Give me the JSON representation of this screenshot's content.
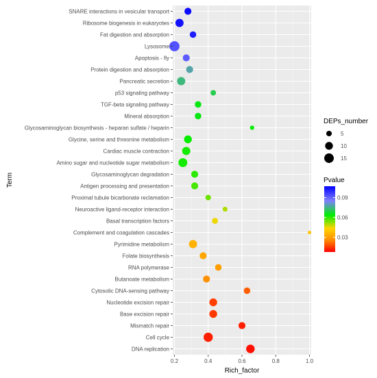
{
  "chart_data": {
    "type": "scatter",
    "title": "",
    "xlabel": "Rich_factor",
    "ylabel": "Term",
    "xlim": [
      0.19,
      1.01
    ],
    "xticks": [
      0.2,
      0.4,
      0.6,
      0.8,
      1.0
    ],
    "xtick_labels": [
      "0.2",
      "0.4",
      "0.6",
      "0.8",
      "1.0"
    ],
    "grid": true,
    "legend_position": "right",
    "points": [
      {
        "term": "SNARE interactions in vesicular transport",
        "rich_factor": 0.28,
        "pvalue": 0.105,
        "deps": 8
      },
      {
        "term": "Ribosome biogenesis in eukaryotes",
        "rich_factor": 0.23,
        "pvalue": 0.104,
        "deps": 11
      },
      {
        "term": "Fat digestion and absorption",
        "rich_factor": 0.31,
        "pvalue": 0.102,
        "deps": 7
      },
      {
        "term": "Lysosome",
        "rich_factor": 0.2,
        "pvalue": 0.093,
        "deps": 17
      },
      {
        "term": "Apoptosis - fly",
        "rich_factor": 0.27,
        "pvalue": 0.091,
        "deps": 8
      },
      {
        "term": "Protein digestion and absorption",
        "rich_factor": 0.29,
        "pvalue": 0.078,
        "deps": 8
      },
      {
        "term": "Pancreatic secretion",
        "rich_factor": 0.24,
        "pvalue": 0.074,
        "deps": 11
      },
      {
        "term": "p53 signaling pathway",
        "rich_factor": 0.43,
        "pvalue": 0.07,
        "deps": 5
      },
      {
        "term": "TGF-beta signaling pathway",
        "rich_factor": 0.34,
        "pvalue": 0.065,
        "deps": 7
      },
      {
        "term": "Mineral absorption",
        "rich_factor": 0.34,
        "pvalue": 0.065,
        "deps": 7
      },
      {
        "term": "Glycosaminoglycan biosynthesis - heparan sulfate / heparin",
        "rich_factor": 0.66,
        "pvalue": 0.063,
        "deps": 3
      },
      {
        "term": "Glycine, serine and threonine metabolism",
        "rich_factor": 0.28,
        "pvalue": 0.063,
        "deps": 10
      },
      {
        "term": "Cardiac muscle contraction",
        "rich_factor": 0.27,
        "pvalue": 0.062,
        "deps": 11
      },
      {
        "term": "Amino sugar and nucleotide sugar metabolism",
        "rich_factor": 0.25,
        "pvalue": 0.062,
        "deps": 13
      },
      {
        "term": "Glycosaminoglycan degradation",
        "rich_factor": 0.32,
        "pvalue": 0.06,
        "deps": 8
      },
      {
        "term": "Antigen processing and presentation",
        "rich_factor": 0.32,
        "pvalue": 0.058,
        "deps": 8
      },
      {
        "term": "Proximal tubule bicarbonate reclamation",
        "rich_factor": 0.4,
        "pvalue": 0.055,
        "deps": 5
      },
      {
        "term": "Neuroactive ligand-receptor interaction",
        "rich_factor": 0.5,
        "pvalue": 0.05,
        "deps": 4
      },
      {
        "term": "Basal transcription factors",
        "rich_factor": 0.44,
        "pvalue": 0.045,
        "deps": 6
      },
      {
        "term": "Complement and coagulation cascades",
        "rich_factor": 1.0,
        "pvalue": 0.04,
        "deps": 2
      },
      {
        "term": "Pyrimidine metabolism",
        "rich_factor": 0.31,
        "pvalue": 0.035,
        "deps": 11
      },
      {
        "term": "Folate biosynthesis",
        "rich_factor": 0.37,
        "pvalue": 0.032,
        "deps": 8
      },
      {
        "term": "RNA polymerase",
        "rich_factor": 0.46,
        "pvalue": 0.03,
        "deps": 7
      },
      {
        "term": "Butanoate metabolism",
        "rich_factor": 0.39,
        "pvalue": 0.027,
        "deps": 8
      },
      {
        "term": "Cytosolic DNA-sensing pathway",
        "rich_factor": 0.63,
        "pvalue": 0.02,
        "deps": 7
      },
      {
        "term": "Nucleotide excision repair",
        "rich_factor": 0.43,
        "pvalue": 0.016,
        "deps": 10
      },
      {
        "term": "Base excision repair",
        "rich_factor": 0.43,
        "pvalue": 0.015,
        "deps": 10
      },
      {
        "term": "Mismatch repair",
        "rich_factor": 0.6,
        "pvalue": 0.012,
        "deps": 8
      },
      {
        "term": "Cell cycle",
        "rich_factor": 0.4,
        "pvalue": 0.012,
        "deps": 14
      },
      {
        "term": "DNA replication",
        "rich_factor": 0.65,
        "pvalue": 0.01,
        "deps": 12
      }
    ],
    "size_legend": {
      "title": "DEPs_number",
      "values": [
        5,
        10,
        15
      ],
      "labels": [
        "5",
        "10",
        "15"
      ]
    },
    "color_legend": {
      "title": "Pvalue",
      "ticks": [
        0.09,
        0.06,
        0.03
      ],
      "tick_labels": [
        "0.09",
        "0.06",
        "0.03"
      ],
      "range": [
        0.008,
        0.107
      ],
      "colors_low_to_high": [
        "#FF0000",
        "#FF8C00",
        "#FFD500",
        "#00EE00",
        "#7F7FFF",
        "#0000FF"
      ]
    }
  }
}
